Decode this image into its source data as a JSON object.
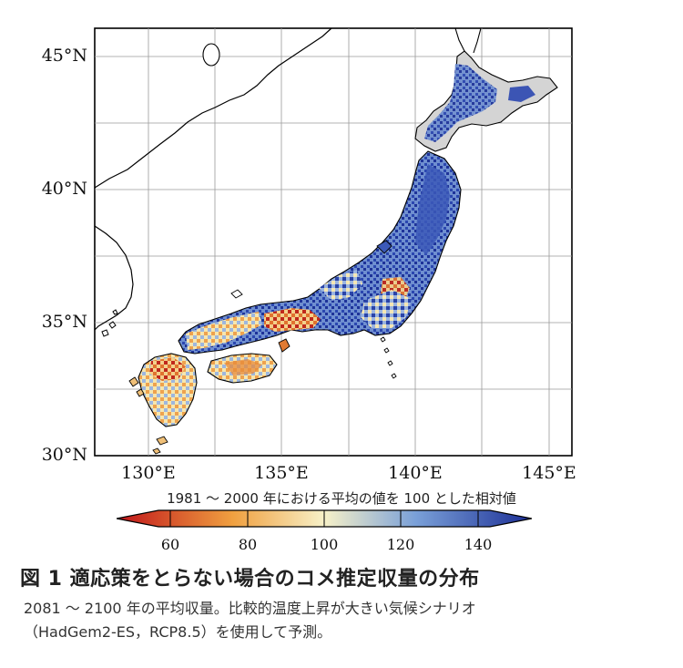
{
  "map": {
    "lat_labels": [
      "45°N",
      "40°N",
      "35°N",
      "30°N"
    ],
    "lon_labels": [
      "130°E",
      "135°E",
      "140°E",
      "145°E"
    ],
    "lat_range": [
      30,
      46
    ],
    "lon_range": [
      128,
      146
    ]
  },
  "colorbar": {
    "title": "1981 ～ 2000 年における平均の値を 100 とした相対値",
    "ticks": [
      "60",
      "80",
      "100",
      "120",
      "140"
    ],
    "colors": {
      "low": "#c0141a",
      "mid_low": "#f0a040",
      "mid": "#f7f1c8",
      "mid_high": "#7aa0d8",
      "high": "#1c2f96",
      "no_data": "#d4d4d4"
    }
  },
  "figure": {
    "title": "図 1 適応策をとらない場合のコメ推定収量の分布",
    "caption_line1": "2081 ～ 2100 年の平均収量。比較的温度上昇が大きい気候シナリオ",
    "caption_line2": "（HadGem2-ES，RCP8.5）を使用して予測。"
  }
}
